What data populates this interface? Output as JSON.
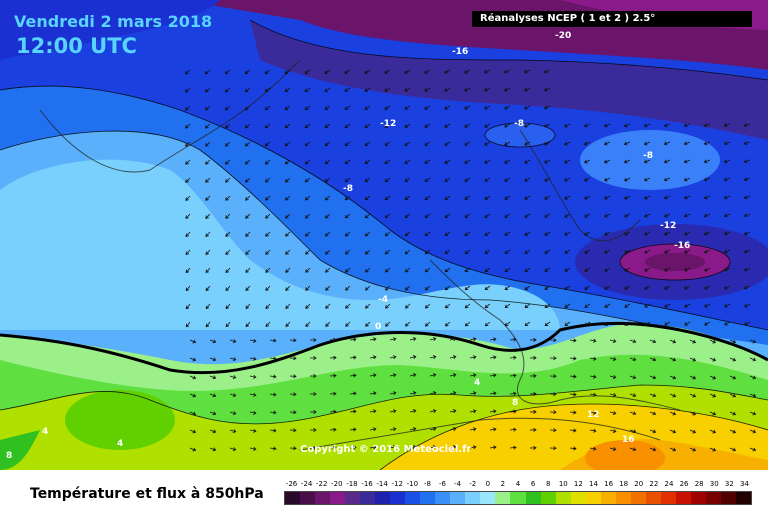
{
  "header": {
    "date": "Vendredi 2 mars 2018",
    "time": "12:00 UTC",
    "source": "Réanalyses NCEP ( 1 et 2 ) 2.5°"
  },
  "copyright": "Copyright © 2016 Meteociel.fr",
  "footer": {
    "title": "Température et flux à 850hPa"
  },
  "contour_labels": [
    "-20",
    "-16",
    "-12",
    "-8",
    "-8",
    "-8",
    "-12",
    "-16",
    "-4",
    "0",
    "4",
    "4",
    "4",
    "8",
    "8",
    "12",
    "16"
  ],
  "legend": {
    "ticks": [
      "-26",
      "-24",
      "-22",
      "-20",
      "-18",
      "-16",
      "-14",
      "-12",
      "-10",
      "-8",
      "-6",
      "-4",
      "-2",
      "0",
      "2",
      "4",
      "6",
      "8",
      "10",
      "12",
      "14",
      "16",
      "18",
      "20",
      "22",
      "24",
      "26",
      "28",
      "30",
      "32",
      "34"
    ],
    "colors": [
      "#2a0a2a",
      "#4a0f4a",
      "#6a146a",
      "#8a1a8a",
      "#5a2a8a",
      "#3a2a9a",
      "#1e20b0",
      "#1a30d0",
      "#1a50e8",
      "#2070f0",
      "#3a90f8",
      "#5ab0fa",
      "#7ad0fc",
      "#9ae6fc",
      "#9cf08a",
      "#60e040",
      "#30c020",
      "#60d000",
      "#b0e000",
      "#e0e000",
      "#f8d000",
      "#f8b000",
      "#f89000",
      "#f07000",
      "#e85000",
      "#e03000",
      "#c81000",
      "#a00000",
      "#780000",
      "#500000",
      "#200000"
    ]
  }
}
